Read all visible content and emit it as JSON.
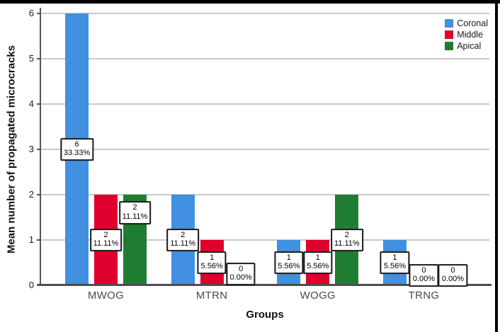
{
  "chart_data": {
    "type": "bar",
    "title": "",
    "xlabel": "Groups",
    "ylabel": "Mean number of propagated microcracks",
    "categories": [
      "MWOG",
      "MTRN",
      "WOGG",
      "TRNG"
    ],
    "series": [
      {
        "name": "Coronal",
        "color": "#4290E1",
        "values": [
          6,
          2,
          1,
          1
        ],
        "labels": [
          [
            "6",
            "33.33%"
          ],
          [
            "2",
            "11.11%"
          ],
          [
            "1",
            "5.56%"
          ],
          [
            "1",
            "5.56%"
          ]
        ],
        "label_anchor_values": [
          3.0,
          1.0,
          0.5,
          0.5
        ]
      },
      {
        "name": "Middle",
        "color": "#E0002D",
        "values": [
          2,
          1,
          1,
          0
        ],
        "labels": [
          [
            "2",
            "11.11%"
          ],
          [
            "1",
            "5.56%"
          ],
          [
            "1",
            "5.56%"
          ],
          [
            "0",
            "0.00%"
          ]
        ],
        "label_anchor_values": [
          1.0,
          0.5,
          0.5,
          0.22
        ]
      },
      {
        "name": "Apical",
        "color": "#1F7D32",
        "values": [
          2,
          0,
          2,
          0
        ],
        "labels": [
          [
            "2",
            "11.11%"
          ],
          [
            "0",
            "0.00%"
          ],
          [
            "2",
            "11.11%"
          ],
          [
            "0",
            "0.00%"
          ]
        ],
        "label_anchor_values": [
          1.6,
          0.25,
          1.0,
          0.22
        ]
      }
    ],
    "ylim": [
      0,
      6
    ],
    "yticks": [
      0,
      1,
      2,
      3,
      4,
      5,
      6
    ],
    "grid": true,
    "legend_position": "top-right"
  },
  "legend": {
    "items": [
      {
        "label": "Coronal",
        "color": "#4290E1"
      },
      {
        "label": "Middle",
        "color": "#E0002D"
      },
      {
        "label": "Apical",
        "color": "#1F7D32"
      }
    ]
  },
  "style": {
    "gridline_color": "#c9c9c9",
    "axis_color": "#4d4d4d",
    "background": "#ffffff",
    "frame_color": "#000000"
  }
}
